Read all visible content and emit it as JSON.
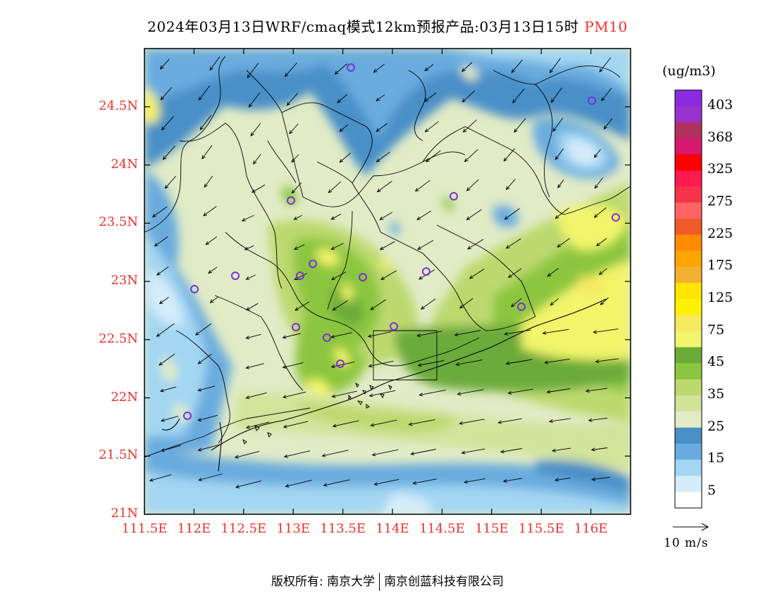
{
  "title": {
    "main": "2024年03月13日WRF/cmaq模式12km预报产品:03月13日15时",
    "variable": "PM10"
  },
  "axes": {
    "lat_ticks": [
      "24.5N",
      "24N",
      "23.5N",
      "23N",
      "22.5N",
      "22N",
      "21.5N",
      "21N"
    ],
    "lon_ticks": [
      "111.5E",
      "112E",
      "112.5E",
      "113E",
      "113.5E",
      "114E",
      "114.5E",
      "115E",
      "115.5E",
      "116E"
    ],
    "lat_range": [
      21.0,
      25.0
    ],
    "lon_range": [
      111.5,
      116.4
    ]
  },
  "colorbar": {
    "unit": "(ug/m3)",
    "labels": [
      "403",
      "368",
      "325",
      "275",
      "225",
      "175",
      "125",
      "75",
      "45",
      "35",
      "25",
      "15",
      "5"
    ],
    "colors_top_to_bottom": [
      "#8a2be2",
      "#9932cc",
      "#b03060",
      "#d6186e",
      "#ff0000",
      "#ff1a4d",
      "#f5344b",
      "#ff6464",
      "#f05a28",
      "#ff8c00",
      "#ffa500",
      "#f4b030",
      "#ffe600",
      "#fff200",
      "#f5e960",
      "#f2f46b",
      "#6aab3a",
      "#8cc63f",
      "#bcd96e",
      "#d2e39a",
      "#e1ebc6",
      "#4a8fc8",
      "#6aacdf",
      "#a2d6f2",
      "#d5ecfa",
      "#ffffff"
    ]
  },
  "wind_key": {
    "label": "10 m/s"
  },
  "footer": {
    "left": "版权所有: 南京大学",
    "right": "南京创蓝科技有限公司"
  },
  "stations": "purple-circle-markers"
}
